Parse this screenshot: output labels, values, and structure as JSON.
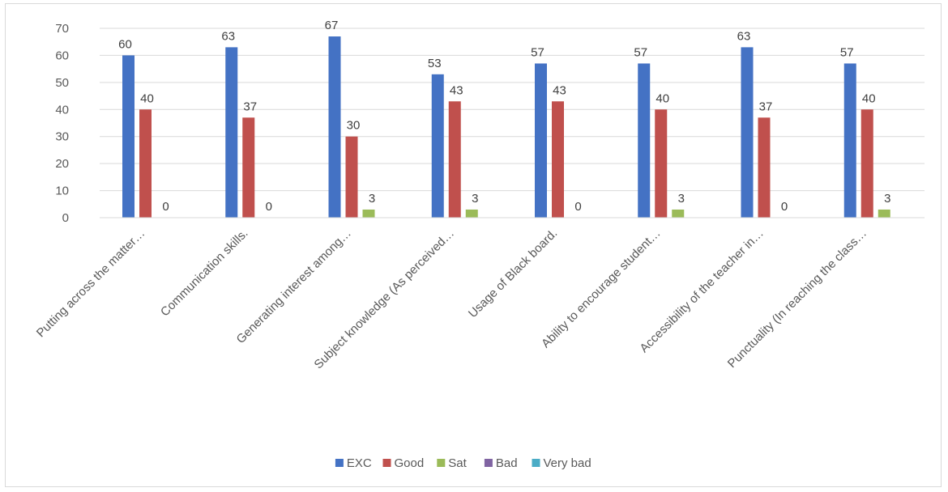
{
  "chart_data": {
    "type": "bar",
    "categories": [
      "Putting across the matter…",
      "Communication skills.",
      "Generating interest among…",
      "Subject knowledge (As perceived…",
      "Usage of Black board.",
      "Ability to encourage student…",
      "Accessibility of the teacher in…",
      "Punctuality (In reaching the class…"
    ],
    "series": [
      {
        "name": "EXC",
        "color": "#4472c4",
        "values": [
          60,
          63,
          67,
          53,
          57,
          57,
          63,
          57
        ]
      },
      {
        "name": "Good",
        "color": "#c0504d",
        "values": [
          40,
          37,
          30,
          43,
          43,
          40,
          37,
          40
        ]
      },
      {
        "name": "Sat",
        "color": "#9bbb59",
        "values": [
          0,
          0,
          3,
          3,
          0,
          3,
          0,
          3
        ]
      },
      {
        "name": "Bad",
        "color": "#8064a2",
        "values": [
          null,
          null,
          null,
          null,
          null,
          null,
          null,
          null
        ]
      },
      {
        "name": "Very bad",
        "color": "#4bacc6",
        "values": [
          null,
          null,
          null,
          null,
          null,
          null,
          null,
          null
        ]
      }
    ],
    "data_labels": {
      "EXC": [
        "60",
        "63",
        "67",
        "53",
        "57",
        "57",
        "63",
        "57"
      ],
      "Good": [
        "40",
        "37",
        "30",
        "43",
        "43",
        "40",
        "37",
        "40"
      ],
      "Sat": [
        "0",
        "0",
        "3",
        "3",
        "0",
        "3",
        "0",
        "3"
      ]
    },
    "yticks": [
      "0",
      "10",
      "20",
      "30",
      "40",
      "50",
      "60",
      "70"
    ],
    "ylim": [
      0,
      70
    ],
    "grid": true,
    "legend_position": "bottom",
    "title": "",
    "xlabel": "",
    "ylabel": ""
  }
}
